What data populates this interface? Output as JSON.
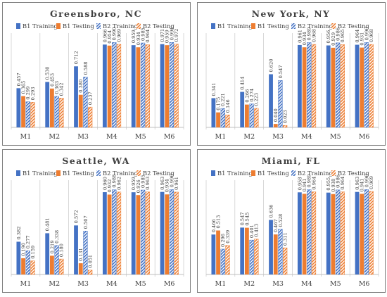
{
  "colors": {
    "b1": "#4472C4",
    "b2": "#ED7D31",
    "frame": "#7F7F7F",
    "grid": "#BFBFBF",
    "text": "#404040"
  },
  "legend_labels": [
    "B1 Training",
    "B1 Testing",
    "B2 Training",
    "B2 Testing"
  ],
  "chart_data": [
    {
      "type": "bar",
      "title": "Greensboro, NC",
      "categories": [
        "M1",
        "M2",
        "M3",
        "M4",
        "M5",
        "M6"
      ],
      "ylim": [
        0,
        1.1
      ],
      "grid": "vertical separators",
      "legend": "top",
      "series": [
        {
          "name": "B1 Training",
          "values": [
            0.457,
            0.53,
            0.712,
            0.966,
            0.959,
            0.971
          ]
        },
        {
          "name": "B1 Testing",
          "values": [
            0.365,
            0.453,
            0.38,
            0.954,
            0.934,
            0.959
          ]
        },
        {
          "name": "B2 Training",
          "values": [
            0.299,
            0.363,
            0.588,
            0.99,
            0.985,
            0.991
          ]
        },
        {
          "name": "B2 Testing",
          "values": [
            0.293,
            0.342,
            0.237,
            0.969,
            0.964,
            0.972
          ]
        }
      ]
    },
    {
      "type": "bar",
      "title": "New York, NY",
      "categories": [
        "M1",
        "M2",
        "M3",
        "M4",
        "M5",
        "M6"
      ],
      "ylim": [
        0,
        1.1
      ],
      "grid": "vertical separators",
      "legend": "top",
      "series": [
        {
          "name": "B1 Training",
          "values": [
            0.341,
            0.414,
            0.62,
            0.961,
            0.956,
            0.964
          ]
        },
        {
          "name": "B1 Testing",
          "values": [
            0.175,
            0.266,
            0.04,
            0.934,
            0.929,
            0.931
          ]
        },
        {
          "name": "B2 Training",
          "values": [
            0.221,
            0.274,
            0.547,
            0.989,
            0.986,
            0.99
          ]
        },
        {
          "name": "B2 Testing",
          "values": [
            0.146,
            0.223,
            0.023,
            0.968,
            0.965,
            0.968
          ]
        }
      ]
    },
    {
      "type": "bar",
      "title": "Seattle, WA",
      "categories": [
        "M1",
        "M2",
        "M3",
        "M4",
        "M5",
        "M6"
      ],
      "ylim": [
        0,
        1.1
      ],
      "grid": "vertical separators",
      "legend": "top",
      "series": [
        {
          "name": "B1 Training",
          "values": [
            0.382,
            0.481,
            0.572,
            0.96,
            0.959,
            0.963
          ]
        },
        {
          "name": "B1 Testing",
          "values": [
            0.19,
            0.219,
            0.131,
            0.932,
            0.926,
            0.934
          ]
        },
        {
          "name": "B2 Training",
          "values": [
            0.277,
            0.338,
            0.507,
            0.988,
            0.985,
            0.99
          ]
        },
        {
          "name": "B2 Testing",
          "values": [
            0.159,
            0.18,
            0.051,
            0.962,
            0.963,
            0.961
          ]
        }
      ]
    },
    {
      "type": "bar",
      "title": "Miami, FL",
      "categories": [
        "M1",
        "M2",
        "M3",
        "M4",
        "M5",
        "M6"
      ],
      "ylim": [
        0,
        1.1
      ],
      "grid": "vertical separators",
      "legend": "top",
      "series": [
        {
          "name": "B1 Training",
          "values": [
            0.466,
            0.547,
            0.636,
            0.958,
            0.955,
            0.963
          ]
        },
        {
          "name": "B1 Testing",
          "values": [
            0.513,
            0.545,
            0.467,
            0.941,
            0.938,
            0.941
          ]
        },
        {
          "name": "B2 Training",
          "values": [
            0.296,
            0.401,
            0.528,
            0.989,
            0.986,
            0.99
          ]
        },
        {
          "name": "B2 Testing",
          "values": [
            0.339,
            0.413,
            0.311,
            0.964,
            0.964,
            0.969
          ]
        }
      ]
    }
  ]
}
